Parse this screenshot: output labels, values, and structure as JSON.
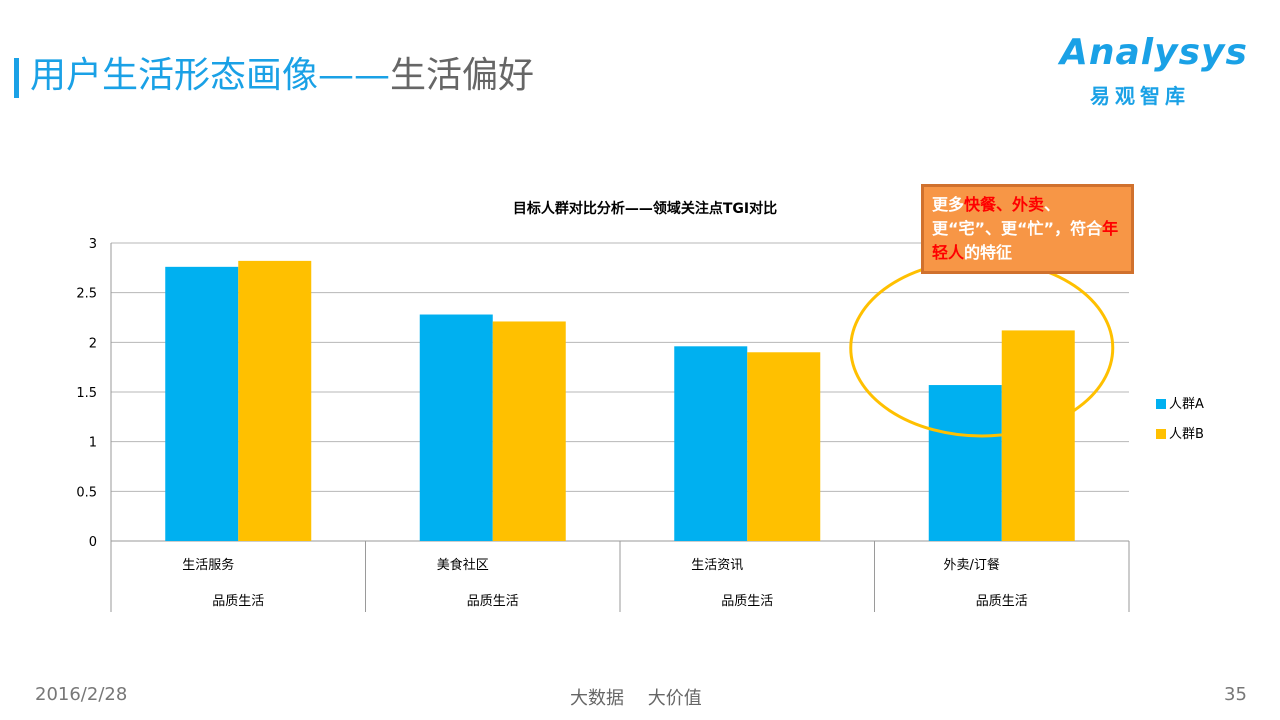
{
  "header": {
    "title_main": "用户生活形态画像",
    "title_sep": "——",
    "title_sub": "生活偏好"
  },
  "logo": {
    "word": "Analysys",
    "cn": "易观智库"
  },
  "callout": {
    "parts": [
      "更多",
      "快餐、外卖",
      "、更“宅”、更“忙”，符合",
      "年轻人",
      "的特征"
    ]
  },
  "footer": {
    "date": "2016/2/28",
    "center": "大数据 大价值",
    "page": "35"
  },
  "chart_data": {
    "type": "bar",
    "title": "目标人群对比分析——领域关注点TGI对比",
    "categories": [
      "生活服务",
      "美食社区",
      "生活资讯",
      "外卖/订餐"
    ],
    "groups": [
      "品质生活",
      "品质生活",
      "品质生活",
      "品质生活"
    ],
    "series": [
      {
        "name": "人群A",
        "values": [
          2.76,
          2.28,
          1.96,
          1.57
        ],
        "color": "#00b0f0"
      },
      {
        "name": "人群B",
        "values": [
          2.82,
          2.21,
          1.9,
          2.12
        ],
        "color": "#ffc000"
      }
    ],
    "ylim": [
      0,
      3
    ],
    "yticks": [
      "0",
      "0.5",
      "1",
      "1.5",
      "2",
      "2.5",
      "3"
    ],
    "grid": true,
    "legend": "right",
    "xlabel": "",
    "ylabel": ""
  }
}
